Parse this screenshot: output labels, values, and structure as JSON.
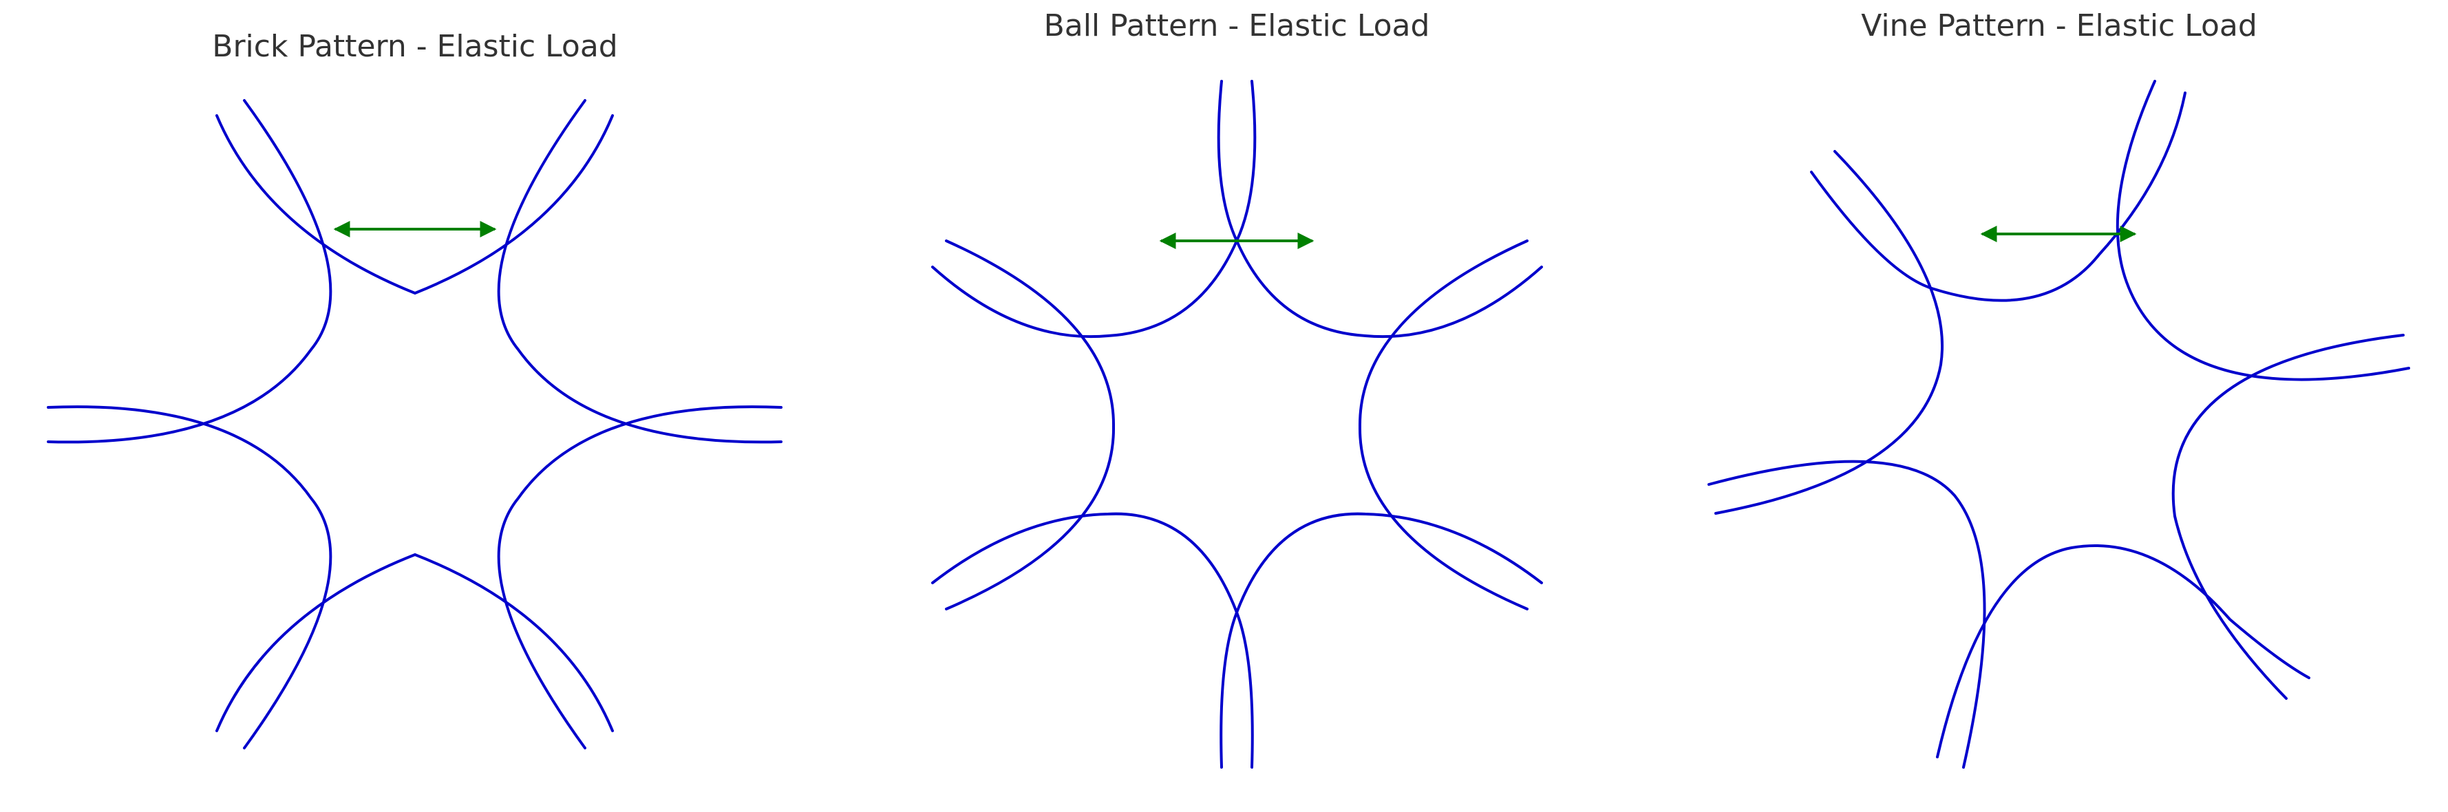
{
  "colors": {
    "curve": "#0000cc",
    "arrow": "#008000",
    "text": "#333333"
  },
  "panels": [
    {
      "id": "brick",
      "title": "Brick Pattern - Elastic Load"
    },
    {
      "id": "ball",
      "title": "Ball Pattern - Elastic Load"
    },
    {
      "id": "vine",
      "title": "Vine Pattern - Elastic Load"
    }
  ]
}
